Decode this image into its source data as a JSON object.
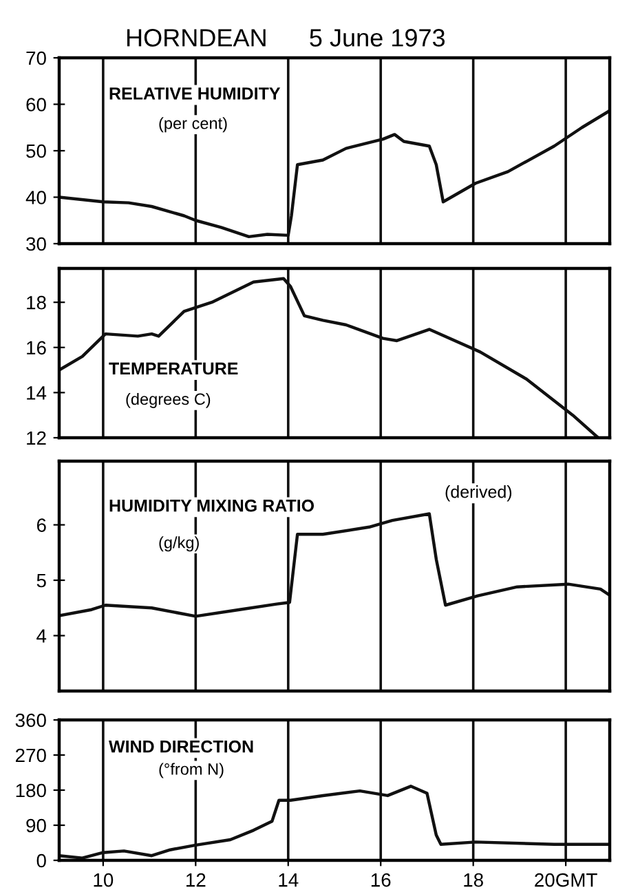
{
  "chart_data": [
    {
      "type": "line",
      "title": "HORNDEAN      5 June 1973",
      "annotations": [
        "RELATIVE HUMIDITY",
        "(per cent)"
      ],
      "x": [
        9.05,
        10.0,
        10.55,
        11.05,
        11.75,
        12.0,
        12.55,
        13.15,
        13.55,
        14.0,
        14.07,
        14.2,
        14.75,
        15.25,
        16.05,
        16.3,
        16.5,
        17.05,
        17.2,
        17.35,
        18.05,
        18.75,
        19.75,
        20.35,
        20.93
      ],
      "series": [
        {
          "color": "#111111",
          "values": [
            40,
            39,
            38.8,
            38,
            36,
            35,
            33.5,
            31.5,
            32,
            31.8,
            36,
            47,
            48,
            50.5,
            52.5,
            53.5,
            52,
            51,
            47,
            39,
            43,
            45.5,
            51,
            55,
            58.5
          ]
        }
      ],
      "xlim": [
        9.05,
        20.95
      ],
      "xticks": [
        10,
        12,
        14,
        16,
        18,
        20
      ],
      "ylim": [
        30,
        70
      ],
      "yticks": [
        30,
        40,
        50,
        60,
        70
      ],
      "grid": "x",
      "tick_labels": "y"
    },
    {
      "type": "line",
      "annotations": [
        "TEMPERATURE",
        "(degrees C)"
      ],
      "x": [
        9.05,
        9.55,
        10.05,
        10.75,
        11.05,
        11.2,
        11.75,
        12.35,
        13.25,
        13.9,
        14.05,
        14.35,
        14.75,
        15.25,
        16.05,
        16.35,
        17.05,
        18.15,
        19.15,
        20.15,
        20.7
      ],
      "series": [
        {
          "color": "#111111",
          "values": [
            15.0,
            15.6,
            16.6,
            16.5,
            16.6,
            16.5,
            17.6,
            18.0,
            18.9,
            19.05,
            18.7,
            17.4,
            17.2,
            17.0,
            16.4,
            16.3,
            16.8,
            15.8,
            14.6,
            13.0,
            12.0
          ]
        }
      ],
      "xlim": [
        9.05,
        20.95
      ],
      "xticks": [
        10,
        12,
        14,
        16,
        18,
        20
      ],
      "ylim": [
        12,
        19.5
      ],
      "yticks": [
        12,
        14,
        16,
        18
      ],
      "grid": "x",
      "tick_labels": "y"
    },
    {
      "type": "line",
      "annotations": [
        "HUMIDITY MIXING RATIO",
        "(g/kg)",
        "(derived)"
      ],
      "x": [
        9.05,
        9.75,
        10.05,
        11.05,
        12.0,
        12.95,
        13.75,
        14.03,
        14.2,
        14.75,
        15.75,
        16.25,
        17.05,
        17.2,
        17.4,
        18.1,
        18.95,
        20.05,
        20.75,
        20.93
      ],
      "series": [
        {
          "color": "#111111",
          "values": [
            4.36,
            4.47,
            4.55,
            4.5,
            4.35,
            4.47,
            4.57,
            4.6,
            5.83,
            5.83,
            5.96,
            6.08,
            6.2,
            5.38,
            4.55,
            4.72,
            4.88,
            4.93,
            4.84,
            4.74
          ]
        }
      ],
      "xlim": [
        9.05,
        20.95
      ],
      "xticks": [
        10,
        12,
        14,
        16,
        18,
        20
      ],
      "ylim": [
        3,
        7.15
      ],
      "yticks": [
        4,
        5,
        6
      ],
      "grid": "x",
      "tick_labels": "y"
    },
    {
      "type": "line",
      "annotations": [
        "WIND DIRECTION",
        "(°from N)"
      ],
      "x": [
        9.05,
        9.55,
        10.0,
        10.45,
        11.05,
        11.45,
        12.0,
        12.75,
        13.25,
        13.65,
        13.8,
        14.05,
        14.75,
        15.55,
        16.15,
        16.65,
        17.0,
        17.2,
        17.3,
        18.05,
        19.75,
        20.93
      ],
      "series": [
        {
          "color": "#111111",
          "values": [
            12,
            6,
            20,
            24,
            12,
            27,
            39,
            53,
            77,
            100,
            154,
            154,
            166,
            178,
            166,
            190,
            172,
            65,
            41,
            47,
            41,
            41
          ]
        }
      ],
      "xlim": [
        9.05,
        20.95
      ],
      "xticks": [
        10,
        12,
        14,
        16,
        18,
        {
          "value": 20,
          "label": "20GMT"
        }
      ],
      "ylim": [
        0,
        360
      ],
      "yticks": [
        0,
        90,
        180,
        270,
        360
      ],
      "grid": "x"
    }
  ]
}
